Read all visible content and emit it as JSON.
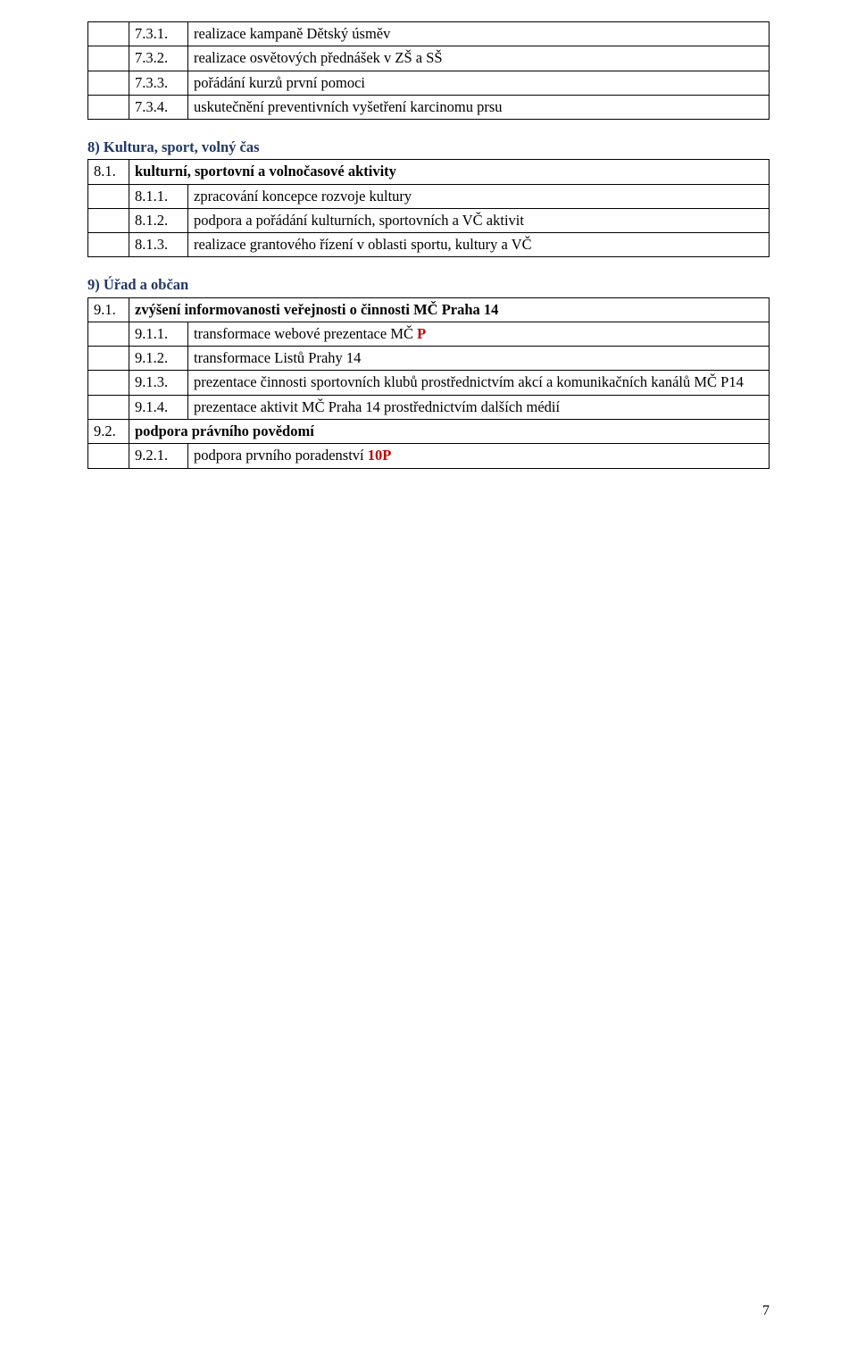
{
  "table7": {
    "col_widths": {
      "a": 46,
      "b": 66
    },
    "rows": [
      {
        "a": "",
        "b": "7.3.1.",
        "c": "realizace kampaně Dětský úsměv"
      },
      {
        "a": "",
        "b": "7.3.2.",
        "c": "realizace osvětových přednášek v ZŠ a SŠ"
      },
      {
        "a": "",
        "b": "7.3.3.",
        "c": "pořádání kurzů první pomoci"
      },
      {
        "a": "",
        "b": "7.3.4.",
        "c": "uskutečnění preventivních vyšetření karcinomu prsu"
      }
    ]
  },
  "section8": {
    "heading": "8) Kultura, sport, volný čas",
    "rows": [
      {
        "a": "8.1.",
        "b": "",
        "c": "kulturní, sportovní a volnočasové aktivity",
        "bold": true
      },
      {
        "a": "",
        "b": "8.1.1.",
        "c": "zpracování koncepce rozvoje kultury"
      },
      {
        "a": "",
        "b": "8.1.2.",
        "c": "podpora a pořádání kulturních, sportovních a VČ aktivit"
      },
      {
        "a": "",
        "b": "8.1.3.",
        "c": "realizace grantového řízení v oblasti sportu, kultury a VČ"
      }
    ]
  },
  "section9": {
    "heading": "9) Úřad a občan",
    "rows": [
      {
        "a": "9.1.",
        "b": "",
        "c": "zvýšení informovanosti veřejnosti o činnosti MČ Praha 14",
        "bold": true
      },
      {
        "a": "",
        "b": "9.1.1.",
        "c_prefix": "transformace webové prezentace MČ ",
        "c_suffix": "P",
        "suffix_red": true
      },
      {
        "a": "",
        "b": "9.1.2.",
        "c": "transformace Listů Prahy 14"
      },
      {
        "a": "",
        "b": "9.1.3.",
        "c": "prezentace činnosti sportovních klubů prostřednictvím akcí a komunikačních kanálů MČ P14"
      },
      {
        "a": "",
        "b": "9.1.4.",
        "c": "prezentace aktivit MČ Praha 14 prostřednictvím dalších médií"
      },
      {
        "a": "9.2.",
        "b": "",
        "c": "podpora právního povědomí",
        "bold": true
      },
      {
        "a": "",
        "b": "9.2.1.",
        "c_prefix": "podpora prvního poradenství ",
        "c_suffix": "10P",
        "suffix_red": true
      }
    ]
  },
  "page_number": "7"
}
